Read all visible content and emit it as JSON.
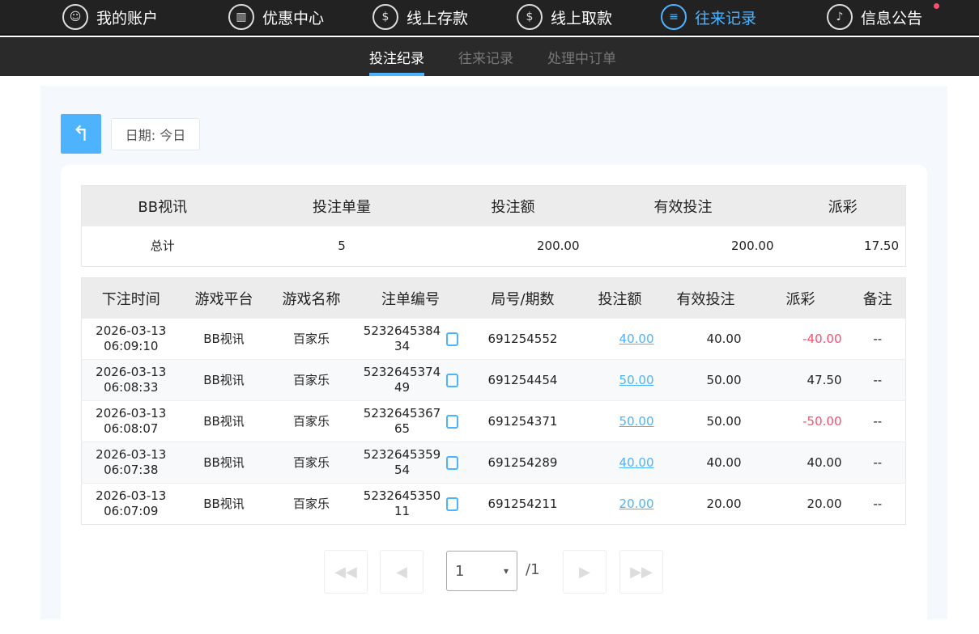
{
  "nav": [
    {
      "label": "我的账户",
      "icon": "user-icon"
    },
    {
      "label": "优惠中心",
      "icon": "gift-icon"
    },
    {
      "label": "线上存款",
      "icon": "deposit-icon"
    },
    {
      "label": "线上取款",
      "icon": "withdraw-icon"
    },
    {
      "label": "往来记录",
      "icon": "record-icon",
      "active": true
    },
    {
      "label": "信息公告",
      "icon": "bell-icon"
    }
  ],
  "subtabs": [
    "投注纪录",
    "往来记录",
    "处理中订单"
  ],
  "date_label": "日期: 今日",
  "summary": {
    "headers": [
      "BB视讯",
      "投注单量",
      "投注额",
      "有效投注",
      "派彩"
    ],
    "row": [
      "总计",
      "5",
      "200.00",
      "200.00",
      "17.50"
    ]
  },
  "detail": {
    "headers": [
      "下注时间",
      "游戏平台",
      "游戏名称",
      "注单编号",
      "局号/期数",
      "投注额",
      "有效投注",
      "派彩",
      "备注"
    ],
    "rows": [
      [
        "2026-03-13",
        "06:09:10",
        "BB视讯",
        "百家乐",
        "523264538434",
        "691254552",
        "40.00",
        "40.00",
        "-40.00",
        "--"
      ],
      [
        "2026-03-13",
        "06:08:33",
        "BB视讯",
        "百家乐",
        "523264537449",
        "691254454",
        "50.00",
        "50.00",
        "47.50",
        "--"
      ],
      [
        "2026-03-13",
        "06:08:07",
        "BB视讯",
        "百家乐",
        "523264536765",
        "691254371",
        "50.00",
        "50.00",
        "-50.00",
        "--"
      ],
      [
        "2026-03-13",
        "06:07:38",
        "BB视讯",
        "百家乐",
        "523264535954",
        "691254289",
        "40.00",
        "40.00",
        "40.00",
        "--"
      ],
      [
        "2026-03-13",
        "06:07:09",
        "BB视讯",
        "百家乐",
        "523264535011",
        "691254211",
        "20.00",
        "20.00",
        "20.00",
        "--"
      ]
    ]
  },
  "pagination": {
    "page": "1",
    "total": "/1"
  },
  "colors": {
    "accent": "#4db3ff",
    "negative": "#ff4d6d"
  }
}
